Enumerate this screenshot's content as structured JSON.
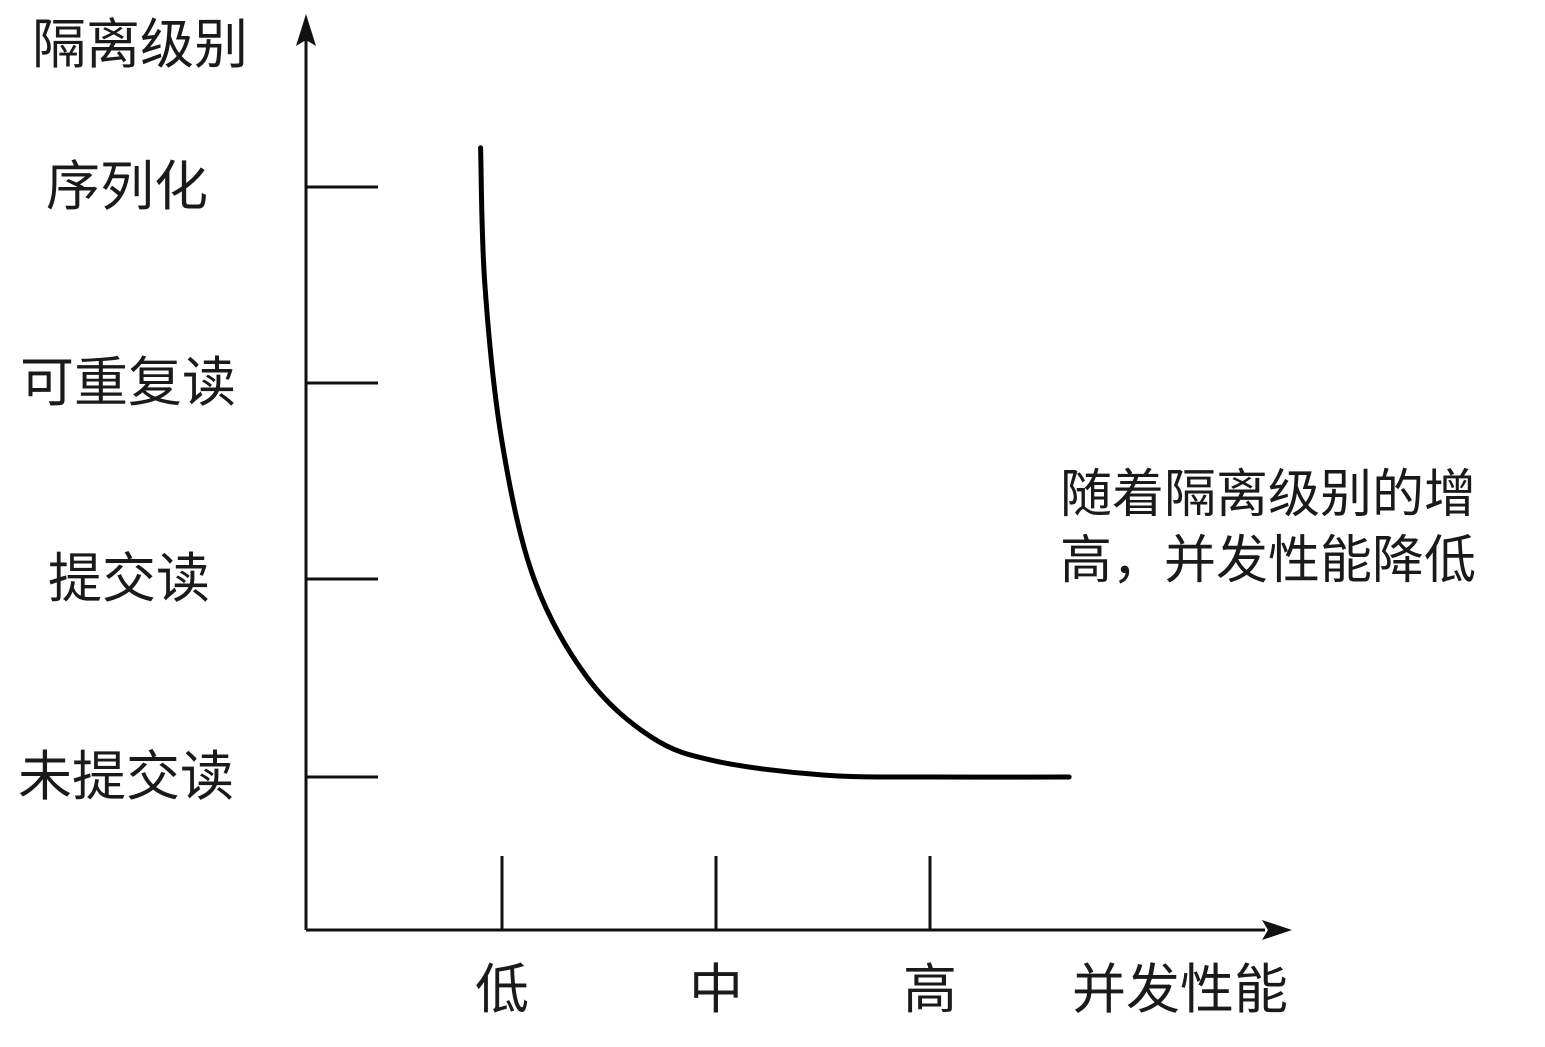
{
  "chart_data": {
    "type": "line",
    "ylabel": "隔离级别",
    "xlabel": "并发性能",
    "y_categories": [
      "未提交读",
      "提交读",
      "可重复读",
      "序列化"
    ],
    "x_categories": [
      "低",
      "中",
      "高"
    ],
    "annotation": [
      "随着隔离级别的增",
      "高，并发性能降低"
    ],
    "series": [
      {
        "points": [
          {
            "x": 0.9,
            "y": 4.2
          },
          {
            "x": 0.92,
            "y": 3.5
          },
          {
            "x": 1.0,
            "y": 2.7
          },
          {
            "x": 1.15,
            "y": 2.0
          },
          {
            "x": 1.4,
            "y": 1.5
          },
          {
            "x": 1.7,
            "y": 1.2
          },
          {
            "x": 2.0,
            "y": 1.08
          },
          {
            "x": 2.5,
            "y": 1.01
          },
          {
            "x": 3.0,
            "y": 1.0
          },
          {
            "x": 3.65,
            "y": 1.0
          }
        ]
      }
    ],
    "grid": false,
    "legend": "none"
  }
}
